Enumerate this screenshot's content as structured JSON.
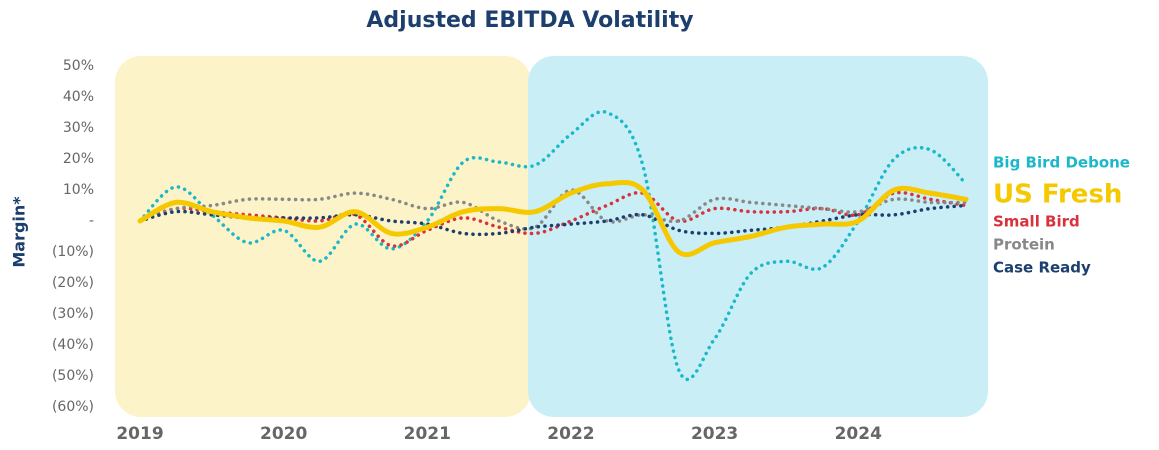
{
  "chart_data": {
    "type": "line",
    "title": "Adjusted EBITDA Volatility",
    "y_label": "Margin*",
    "x": [
      2019,
      2019.25,
      2019.5,
      2019.75,
      2020,
      2020.25,
      2020.5,
      2020.75,
      2021,
      2021.25,
      2021.5,
      2021.75,
      2022,
      2022.25,
      2022.5,
      2022.75,
      2023,
      2023.25,
      2023.5,
      2023.75,
      2024,
      2024.25,
      2024.5,
      2024.75
    ],
    "xlim": [
      2019,
      2024.75
    ],
    "xticks": [
      2019,
      2020,
      2021,
      2022,
      2023,
      2024
    ],
    "ylim": [
      -60,
      50
    ],
    "yticks": [
      {
        "value": 50,
        "label": "50%"
      },
      {
        "value": 40,
        "label": "40%"
      },
      {
        "value": 30,
        "label": "30%"
      },
      {
        "value": 20,
        "label": "20%"
      },
      {
        "value": 10,
        "label": "10%"
      },
      {
        "value": 0,
        "label": "-"
      },
      {
        "value": -10,
        "label": "(10%)"
      },
      {
        "value": -20,
        "label": "(20%)"
      },
      {
        "value": -30,
        "label": "(30%)"
      },
      {
        "value": -40,
        "label": "(40%)"
      },
      {
        "value": -50,
        "label": "(50%)"
      },
      {
        "value": -60,
        "label": "(60%)"
      }
    ],
    "grid": false,
    "series": [
      {
        "name": "Big Bird Debone",
        "color": "#1ab8c9",
        "line_style": "dotted",
        "values": [
          0,
          11,
          2,
          -7,
          -3,
          -13,
          -1,
          -9,
          0,
          19,
          19,
          18,
          28,
          35,
          18,
          -48,
          -38,
          -17,
          -13,
          -15,
          0,
          20,
          23,
          12
        ]
      },
      {
        "name": "US Fresh",
        "color": "#f5c800",
        "line_style": "solid",
        "values": [
          0,
          6,
          3,
          1,
          0,
          -2,
          3,
          -4,
          -2,
          3,
          4,
          3,
          9,
          12,
          10,
          -10,
          -7,
          -5,
          -2,
          -1,
          0,
          10,
          9,
          7
        ]
      },
      {
        "name": "Small Bird",
        "color": "#d8323c",
        "line_style": "dotted",
        "values": [
          0,
          4,
          3,
          2,
          1,
          0,
          2,
          -8,
          -3,
          1,
          -2,
          -4,
          0,
          5,
          9,
          0,
          4,
          3,
          3,
          4,
          2,
          9,
          7,
          5
        ]
      },
      {
        "name": "Protein",
        "color": "#888888",
        "line_style": "dotted",
        "values": [
          0,
          4,
          5,
          7,
          7,
          7,
          9,
          7,
          4,
          6,
          0,
          -2,
          10,
          0,
          2,
          0,
          7,
          6,
          5,
          4,
          3,
          7,
          6,
          6
        ]
      },
      {
        "name": "Case Ready",
        "color": "#1c3f6e",
        "line_style": "dotted",
        "values": [
          0,
          3,
          2,
          1,
          1,
          1,
          2,
          0,
          -1,
          -4,
          -4,
          -2,
          -1,
          0,
          2,
          -3,
          -4,
          -3,
          -2,
          0,
          2,
          2,
          4,
          5
        ]
      }
    ]
  }
}
